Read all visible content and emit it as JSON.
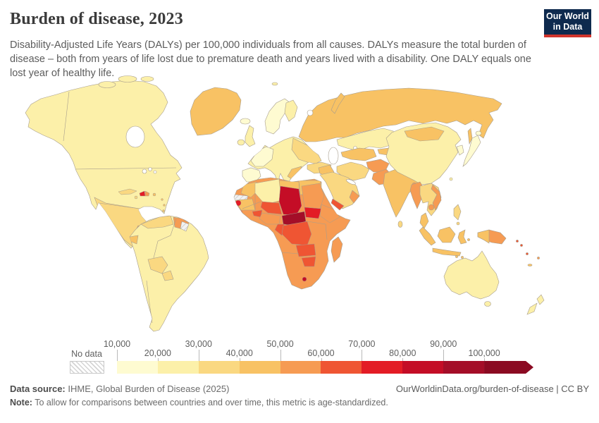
{
  "header": {
    "title": "Burden of disease, 2023",
    "subtitle": "Disability-Adjusted Life Years (DALYs) per 100,000 individuals from all causes. DALYs measure the total burden of disease – both from years of life lost due to premature death and years lived with a disability. One DALY equals one lost year of healthy life.",
    "logo": {
      "line1": "Our World",
      "line2": "in Data",
      "bg_color": "#0e2a4e",
      "accent_color": "#d0342c"
    }
  },
  "legend": {
    "no_data_label": "No data",
    "labels": [
      "10,000",
      "20,000",
      "30,000",
      "40,000",
      "50,000",
      "60,000",
      "70,000",
      "80,000",
      "90,000",
      "100,000"
    ]
  },
  "map": {
    "palette": {
      "b1": "#FEFBD1",
      "b2": "#FCF0A9",
      "b3": "#FAD881",
      "b4": "#F8C264",
      "b5": "#F69B53",
      "b6": "#EF5533",
      "b7": "#E31C25",
      "b8": "#C40D26",
      "b9": "#A40E28",
      "b10": "#8B0A22",
      "border": "#a79d8d",
      "ocean": "#ffffff"
    }
  },
  "footer": {
    "data_source_label": "Data source:",
    "data_source_text": " IHME, Global Burden of Disease (2025)",
    "citation": "OurWorldinData.org/burden-of-disease | CC BY",
    "note_label": "Note:",
    "note_text": " To allow for comparisons between countries and over time, this metric is age-standardized."
  },
  "chart_data": {
    "type": "choropleth",
    "title": "Burden of disease, 2023",
    "metric": "Disability-Adjusted Life Years (DALYs) per 100,000 individuals, all causes, age-standardized",
    "year": 2023,
    "legend_position": "bottom",
    "legend_bins": [
      {
        "label": "10,000–20,000",
        "color": "#FEFBD1"
      },
      {
        "label": "20,000–30,000",
        "color": "#FCF0A9"
      },
      {
        "label": "30,000–40,000",
        "color": "#FAD881"
      },
      {
        "label": "40,000–50,000",
        "color": "#F8C264"
      },
      {
        "label": "50,000–60,000",
        "color": "#F69B53"
      },
      {
        "label": "60,000–70,000",
        "color": "#EF5533"
      },
      {
        "label": "70,000–80,000",
        "color": "#E31C25"
      },
      {
        "label": "80,000–90,000",
        "color": "#C40D26"
      },
      {
        "label": "90,000–100,000",
        "color": "#A40E28"
      },
      {
        "label": ">100,000",
        "color": "#8B0A22"
      }
    ],
    "no_data_regions_visible": [
      "Western Sahara",
      "Suriname"
    ],
    "observed_color_classes": {
      "10,000–20,000": [
        "Japan",
        "South Korea",
        "Sweden",
        "Norway",
        "Spain",
        "France",
        "Germany",
        "Switzerland",
        "Iceland"
      ],
      "20,000–30,000": [
        "United States",
        "Canada",
        "Australia",
        "New Zealand",
        "United Kingdom",
        "Brazil",
        "Argentina",
        "Chile",
        "Colombia",
        "Peru",
        "China",
        "Kazakhstan",
        "Algeria",
        "Italy",
        "Poland"
      ],
      "30,000–40,000": [
        "Mexico",
        "Venezuela",
        "Bolivia",
        "Paraguay",
        "Cuba",
        "Ukraine",
        "Turkey",
        "Iran",
        "Saudi Arabia",
        "Thailand",
        "Philippines",
        "Sri Lanka",
        "Egypt"
      ],
      "40,000–50,000": [
        "Russia",
        "Greenland",
        "Mongolia",
        "India",
        "Indonesia",
        "Malaysia",
        "Libya",
        "Morocco",
        "Mauritania",
        "Uzbekistan",
        "Turkmenistan",
        "Iraq",
        "Balkans",
        "Ecuador",
        "Nicaragua",
        "Dominican Republic"
      ],
      "50,000–60,000": [
        "Pakistan",
        "Afghanistan",
        "Myanmar",
        "Vietnam",
        "Cambodia",
        "Papua New Guinea",
        "Nigeria",
        "Mali",
        "Sudan",
        "Ethiopia",
        "Somalia",
        "Kenya",
        "Tanzania",
        "Angola",
        "Namibia",
        "Botswana",
        "South Africa",
        "Madagascar",
        "Guyana",
        "Guatemala",
        "Oman"
      ],
      "60,000–70,000": [
        "Niger",
        "Burkina Faso",
        "Sierra Leone",
        "Cameroon",
        "DR Congo",
        "Zambia",
        "Zimbabwe",
        "Mozambique",
        "Yemen",
        "Solomon Islands"
      ],
      "70,000–80,000": [
        "Haiti",
        "Guinea",
        "South Sudan"
      ],
      "80,000–90,000": [
        "Chad",
        "Lesotho"
      ],
      "90,000–100,000": [
        "Central African Republic"
      ]
    }
  }
}
